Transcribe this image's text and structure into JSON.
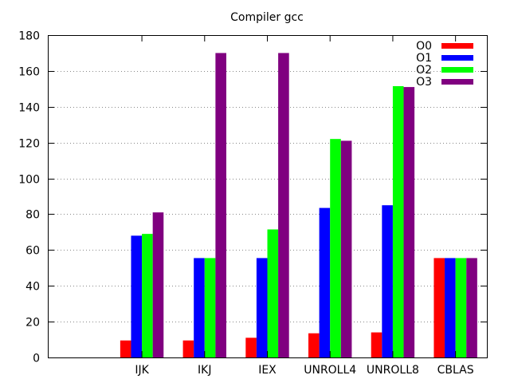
{
  "chart_data": {
    "type": "bar",
    "title": "Compiler gcc",
    "xlabel": "",
    "ylabel": "",
    "ylim": [
      0,
      180
    ],
    "yticks": [
      0,
      20,
      40,
      60,
      80,
      100,
      120,
      140,
      160,
      180
    ],
    "grid": "horizontal dotted",
    "legend_position": "top-right",
    "categories": [
      "",
      "IJK",
      "IKJ",
      "IEX",
      "UNROLL4",
      "UNROLL8",
      "CBLAS"
    ],
    "series": [
      {
        "name": "O0",
        "color": "#ff0000",
        "values": [
          null,
          9.5,
          9.5,
          11,
          13.5,
          14,
          55.5
        ]
      },
      {
        "name": "O1",
        "color": "#0000ff",
        "values": [
          null,
          68,
          55.5,
          55.5,
          83.5,
          85,
          55.5
        ]
      },
      {
        "name": "O2",
        "color": "#00ff00",
        "values": [
          null,
          69,
          55.5,
          71.5,
          122,
          151.5,
          55.5
        ]
      },
      {
        "name": "O3",
        "color": "#800080",
        "values": [
          null,
          81,
          170,
          170,
          121,
          151,
          55.5
        ]
      }
    ]
  }
}
